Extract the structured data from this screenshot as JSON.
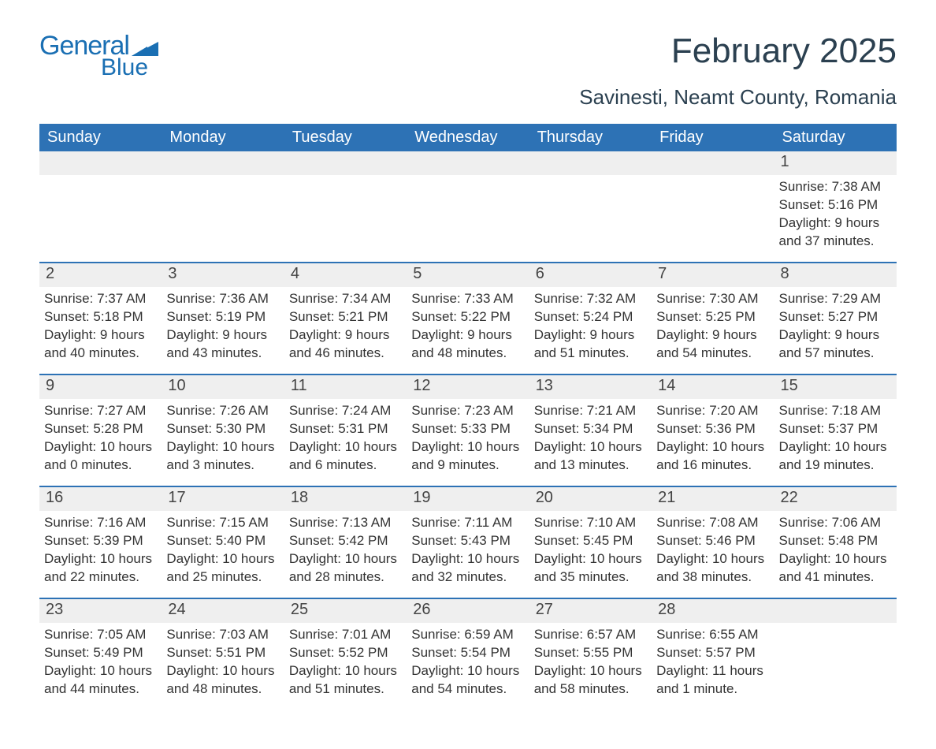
{
  "logo": {
    "word1": "General",
    "word2": "Blue",
    "brand_color": "#1a6fb3"
  },
  "header": {
    "month_title": "February 2025",
    "location": "Savinesti, Neamt County, Romania"
  },
  "calendar": {
    "header_bg": "#2d72b5",
    "header_text_color": "#ffffff",
    "row_border_color": "#2d72b5",
    "band_bg": "#efefef",
    "text_color": "#333333",
    "day_headers": [
      "Sunday",
      "Monday",
      "Tuesday",
      "Wednesday",
      "Thursday",
      "Friday",
      "Saturday"
    ],
    "weeks": [
      [
        null,
        null,
        null,
        null,
        null,
        null,
        {
          "n": "1",
          "sr": "7:38 AM",
          "ss": "5:16 PM",
          "dl": "9 hours and 37 minutes."
        }
      ],
      [
        {
          "n": "2",
          "sr": "7:37 AM",
          "ss": "5:18 PM",
          "dl": "9 hours and 40 minutes."
        },
        {
          "n": "3",
          "sr": "7:36 AM",
          "ss": "5:19 PM",
          "dl": "9 hours and 43 minutes."
        },
        {
          "n": "4",
          "sr": "7:34 AM",
          "ss": "5:21 PM",
          "dl": "9 hours and 46 minutes."
        },
        {
          "n": "5",
          "sr": "7:33 AM",
          "ss": "5:22 PM",
          "dl": "9 hours and 48 minutes."
        },
        {
          "n": "6",
          "sr": "7:32 AM",
          "ss": "5:24 PM",
          "dl": "9 hours and 51 minutes."
        },
        {
          "n": "7",
          "sr": "7:30 AM",
          "ss": "5:25 PM",
          "dl": "9 hours and 54 minutes."
        },
        {
          "n": "8",
          "sr": "7:29 AM",
          "ss": "5:27 PM",
          "dl": "9 hours and 57 minutes."
        }
      ],
      [
        {
          "n": "9",
          "sr": "7:27 AM",
          "ss": "5:28 PM",
          "dl": "10 hours and 0 minutes."
        },
        {
          "n": "10",
          "sr": "7:26 AM",
          "ss": "5:30 PM",
          "dl": "10 hours and 3 minutes."
        },
        {
          "n": "11",
          "sr": "7:24 AM",
          "ss": "5:31 PM",
          "dl": "10 hours and 6 minutes."
        },
        {
          "n": "12",
          "sr": "7:23 AM",
          "ss": "5:33 PM",
          "dl": "10 hours and 9 minutes."
        },
        {
          "n": "13",
          "sr": "7:21 AM",
          "ss": "5:34 PM",
          "dl": "10 hours and 13 minutes."
        },
        {
          "n": "14",
          "sr": "7:20 AM",
          "ss": "5:36 PM",
          "dl": "10 hours and 16 minutes."
        },
        {
          "n": "15",
          "sr": "7:18 AM",
          "ss": "5:37 PM",
          "dl": "10 hours and 19 minutes."
        }
      ],
      [
        {
          "n": "16",
          "sr": "7:16 AM",
          "ss": "5:39 PM",
          "dl": "10 hours and 22 minutes."
        },
        {
          "n": "17",
          "sr": "7:15 AM",
          "ss": "5:40 PM",
          "dl": "10 hours and 25 minutes."
        },
        {
          "n": "18",
          "sr": "7:13 AM",
          "ss": "5:42 PM",
          "dl": "10 hours and 28 minutes."
        },
        {
          "n": "19",
          "sr": "7:11 AM",
          "ss": "5:43 PM",
          "dl": "10 hours and 32 minutes."
        },
        {
          "n": "20",
          "sr": "7:10 AM",
          "ss": "5:45 PM",
          "dl": "10 hours and 35 minutes."
        },
        {
          "n": "21",
          "sr": "7:08 AM",
          "ss": "5:46 PM",
          "dl": "10 hours and 38 minutes."
        },
        {
          "n": "22",
          "sr": "7:06 AM",
          "ss": "5:48 PM",
          "dl": "10 hours and 41 minutes."
        }
      ],
      [
        {
          "n": "23",
          "sr": "7:05 AM",
          "ss": "5:49 PM",
          "dl": "10 hours and 44 minutes."
        },
        {
          "n": "24",
          "sr": "7:03 AM",
          "ss": "5:51 PM",
          "dl": "10 hours and 48 minutes."
        },
        {
          "n": "25",
          "sr": "7:01 AM",
          "ss": "5:52 PM",
          "dl": "10 hours and 51 minutes."
        },
        {
          "n": "26",
          "sr": "6:59 AM",
          "ss": "5:54 PM",
          "dl": "10 hours and 54 minutes."
        },
        {
          "n": "27",
          "sr": "6:57 AM",
          "ss": "5:55 PM",
          "dl": "10 hours and 58 minutes."
        },
        {
          "n": "28",
          "sr": "6:55 AM",
          "ss": "5:57 PM",
          "dl": "11 hours and 1 minute."
        },
        null
      ]
    ],
    "labels": {
      "sunrise_prefix": "Sunrise: ",
      "sunset_prefix": "Sunset: ",
      "daylight_prefix": "Daylight: "
    }
  }
}
